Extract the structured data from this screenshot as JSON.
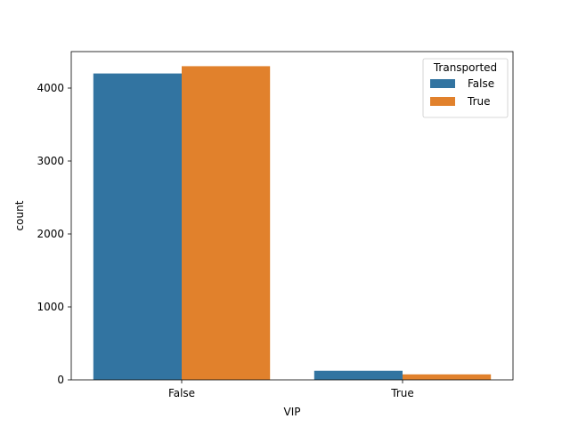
{
  "chart_data": {
    "type": "bar",
    "xlabel": "VIP",
    "ylabel": "count",
    "categories": [
      "False",
      "True"
    ],
    "series": [
      {
        "name": "False",
        "values": [
          4200,
          125
        ],
        "color": "#3274a1"
      },
      {
        "name": "True",
        "values": [
          4300,
          75
        ],
        "color": "#e1812c"
      }
    ],
    "ylim": [
      0,
      4500
    ],
    "yticks": [
      0,
      1000,
      2000,
      3000,
      4000
    ],
    "legend": {
      "title": "Transported",
      "placement": "top-right"
    },
    "grid": false
  }
}
